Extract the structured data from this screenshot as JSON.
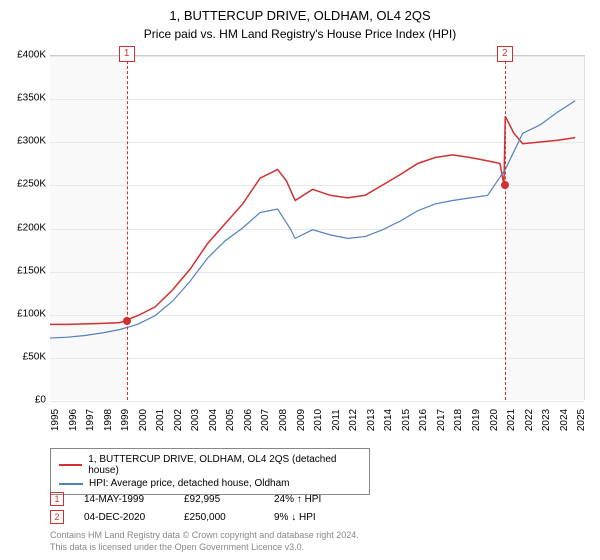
{
  "title": "1, BUTTERCUP DRIVE, OLDHAM, OL4 2QS",
  "subtitle": "Price paid vs. HM Land Registry's House Price Index (HPI)",
  "chart": {
    "type": "line",
    "background_color": "#ffffff",
    "grid_color": "#e8e8e8",
    "axis_color": "#cccccc",
    "fontsize_axis": 10,
    "x_range": [
      1995,
      2025.5
    ],
    "x_ticks": [
      1995,
      1996,
      1997,
      1998,
      1999,
      2000,
      2001,
      2002,
      2003,
      2004,
      2005,
      2006,
      2007,
      2008,
      2009,
      2010,
      2011,
      2012,
      2013,
      2014,
      2015,
      2016,
      2017,
      2018,
      2019,
      2020,
      2021,
      2022,
      2023,
      2024,
      2025
    ],
    "y_range": [
      0,
      400000
    ],
    "y_currency_prefix": "£",
    "y_ticks": [
      0,
      50000,
      100000,
      150000,
      200000,
      250000,
      300000,
      350000,
      400000
    ],
    "y_tick_labels": [
      "£0",
      "£50K",
      "£100K",
      "£150K",
      "£200K",
      "£250K",
      "£300K",
      "£350K",
      "£400K"
    ],
    "shade_pre": {
      "from": 1995,
      "to": 1999.37,
      "color": "#f3f3f3"
    },
    "shade_post": {
      "from": 2020.93,
      "to": 2025.5,
      "color": "#f3f3f3"
    },
    "series": [
      {
        "id": "price_paid",
        "label": "1, BUTTERCUP DRIVE, OLDHAM, OL4 2QS (detached house)",
        "color": "#d03030",
        "line_width": 1.5,
        "data": [
          [
            1995,
            88000
          ],
          [
            1996,
            88000
          ],
          [
            1997,
            88500
          ],
          [
            1998,
            89000
          ],
          [
            1999,
            90000
          ],
          [
            1999.37,
            92995
          ],
          [
            2000,
            98000
          ],
          [
            2001,
            108000
          ],
          [
            2002,
            128000
          ],
          [
            2003,
            152000
          ],
          [
            2004,
            182000
          ],
          [
            2005,
            205000
          ],
          [
            2006,
            228000
          ],
          [
            2007,
            258000
          ],
          [
            2008,
            268000
          ],
          [
            2008.5,
            255000
          ],
          [
            2009,
            232000
          ],
          [
            2010,
            245000
          ],
          [
            2011,
            238000
          ],
          [
            2012,
            235000
          ],
          [
            2013,
            238000
          ],
          [
            2014,
            250000
          ],
          [
            2015,
            262000
          ],
          [
            2016,
            275000
          ],
          [
            2017,
            282000
          ],
          [
            2018,
            285000
          ],
          [
            2019,
            282000
          ],
          [
            2020,
            278000
          ],
          [
            2020.7,
            275000
          ],
          [
            2020.93,
            250000
          ],
          [
            2021,
            330000
          ],
          [
            2021.5,
            310000
          ],
          [
            2022,
            298000
          ],
          [
            2023,
            300000
          ],
          [
            2024,
            302000
          ],
          [
            2025,
            305000
          ]
        ]
      },
      {
        "id": "hpi",
        "label": "HPI: Average price, detached house, Oldham",
        "color": "#5080c0",
        "line_width": 1.2,
        "data": [
          [
            1995,
            72000
          ],
          [
            1996,
            73000
          ],
          [
            1997,
            75000
          ],
          [
            1998,
            78000
          ],
          [
            1999,
            82000
          ],
          [
            2000,
            88000
          ],
          [
            2001,
            98000
          ],
          [
            2002,
            115000
          ],
          [
            2003,
            138000
          ],
          [
            2004,
            165000
          ],
          [
            2005,
            185000
          ],
          [
            2006,
            200000
          ],
          [
            2007,
            218000
          ],
          [
            2008,
            222000
          ],
          [
            2008.7,
            200000
          ],
          [
            2009,
            188000
          ],
          [
            2010,
            198000
          ],
          [
            2011,
            192000
          ],
          [
            2012,
            188000
          ],
          [
            2013,
            190000
          ],
          [
            2014,
            198000
          ],
          [
            2015,
            208000
          ],
          [
            2016,
            220000
          ],
          [
            2017,
            228000
          ],
          [
            2018,
            232000
          ],
          [
            2019,
            235000
          ],
          [
            2020,
            238000
          ],
          [
            2021,
            268000
          ],
          [
            2022,
            310000
          ],
          [
            2023,
            320000
          ],
          [
            2024,
            335000
          ],
          [
            2025,
            348000
          ]
        ]
      }
    ],
    "markers": [
      {
        "n": "1",
        "x": 1999.37,
        "y": 92995
      },
      {
        "n": "2",
        "x": 2020.93,
        "y": 250000
      }
    ],
    "marker_color": "#d03030",
    "marker_line_dash": "3,3"
  },
  "legend": {
    "border_color": "#888888",
    "fontsize": 10,
    "items": [
      {
        "color": "#d03030",
        "label": "1, BUTTERCUP DRIVE, OLDHAM, OL4 2QS (detached house)"
      },
      {
        "color": "#5080c0",
        "label": "HPI: Average price, detached house, Oldham"
      }
    ]
  },
  "sales": [
    {
      "n": "1",
      "date": "14-MAY-1999",
      "price": "£92,995",
      "diff": "24% ↑ HPI"
    },
    {
      "n": "2",
      "date": "04-DEC-2020",
      "price": "£250,000",
      "diff": "9% ↓ HPI"
    }
  ],
  "footer": {
    "line1": "Contains HM Land Registry data © Crown copyright and database right 2024.",
    "line2": "This data is licensed under the Open Government Licence v3.0."
  }
}
